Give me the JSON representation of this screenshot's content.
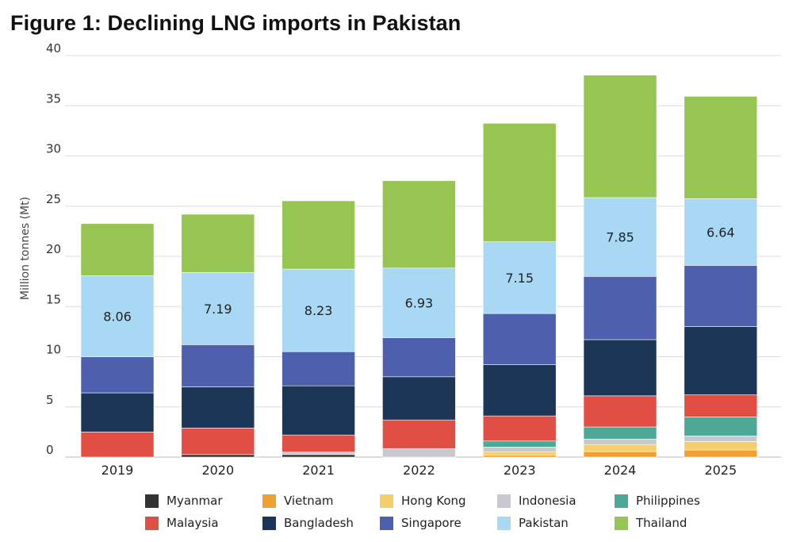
{
  "title": "Figure 1: Declining LNG imports in Pakistan",
  "chart_data": {
    "type": "bar",
    "stacked": true,
    "title": "Figure 1: Declining LNG imports in Pakistan",
    "xlabel": "",
    "ylabel": "Million tonnes (Mt)",
    "ylim": [
      0,
      40
    ],
    "yticks": [
      0,
      5,
      10,
      15,
      20,
      25,
      30,
      35,
      40
    ],
    "grid": true,
    "legend_position": "bottom",
    "categories": [
      "2019",
      "2020",
      "2021",
      "2022",
      "2023",
      "2024",
      "2025"
    ],
    "series": [
      {
        "name": "Myanmar",
        "color": "#333333",
        "values": [
          0.0,
          0.25,
          0.25,
          0.0,
          0.0,
          0.0,
          0.0
        ]
      },
      {
        "name": "Vietnam",
        "color": "#f0a030",
        "values": [
          0.0,
          0.0,
          0.0,
          0.0,
          0.2,
          0.55,
          0.7
        ]
      },
      {
        "name": "Hong Kong",
        "color": "#f5cf6b",
        "values": [
          0.0,
          0.0,
          0.0,
          0.0,
          0.3,
          0.7,
          0.85
        ]
      },
      {
        "name": "Indonesia",
        "color": "#c7c9cf",
        "values": [
          0.0,
          0.0,
          0.25,
          0.85,
          0.5,
          0.55,
          0.55
        ]
      },
      {
        "name": "Philippines",
        "color": "#4ea896",
        "values": [
          0.0,
          0.0,
          0.0,
          0.0,
          0.6,
          1.2,
          1.9
        ]
      },
      {
        "name": "Malaysia",
        "color": "#e04e44",
        "values": [
          2.5,
          2.65,
          1.7,
          2.85,
          2.5,
          3.1,
          2.2
        ]
      },
      {
        "name": "Bangladesh",
        "color": "#1b3657",
        "values": [
          3.9,
          4.1,
          4.9,
          4.3,
          5.1,
          5.6,
          6.8
        ]
      },
      {
        "name": "Singapore",
        "color": "#4e5fae",
        "values": [
          3.6,
          4.2,
          3.4,
          3.9,
          5.1,
          6.3,
          6.1
        ]
      },
      {
        "name": "Pakistan",
        "color": "#a8d8f3",
        "values": [
          8.06,
          7.19,
          8.23,
          6.93,
          7.15,
          7.85,
          6.64
        ]
      },
      {
        "name": "Thailand",
        "color": "#97c551",
        "values": [
          5.2,
          5.8,
          6.8,
          8.7,
          11.8,
          12.2,
          10.2
        ]
      }
    ],
    "data_labels": {
      "series": "Pakistan",
      "labels": [
        "8.06",
        "7.19",
        "8.23",
        "6.93",
        "7.15",
        "7.85",
        "6.64"
      ]
    }
  },
  "legend": {
    "rows": [
      [
        "Myanmar",
        "Vietnam",
        "Hong Kong",
        "Indonesia",
        "Philippines"
      ],
      [
        "Malaysia",
        "Bangladesh",
        "Singapore",
        "Pakistan",
        "Thailand"
      ]
    ]
  }
}
